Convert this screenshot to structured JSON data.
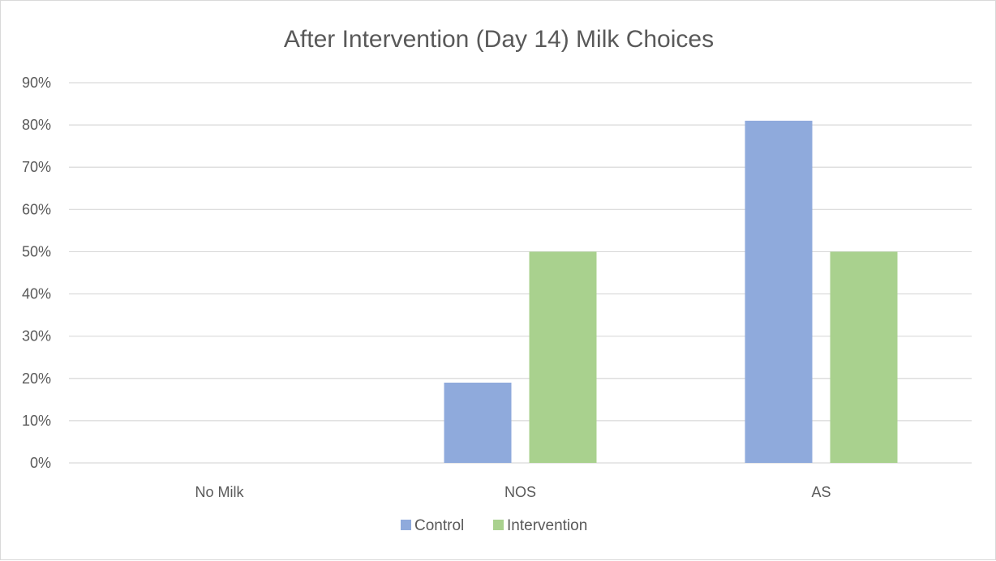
{
  "chart_data": {
    "type": "bar",
    "title": "After Intervention (Day 14) Milk Choices",
    "categories": [
      "No Milk",
      "NOS",
      "AS"
    ],
    "series": [
      {
        "name": "Control",
        "values": [
          0,
          0.19,
          0.81
        ],
        "color": "#8faadc"
      },
      {
        "name": "Intervention",
        "values": [
          0,
          0.5,
          0.5
        ],
        "color": "#a9d18e"
      }
    ],
    "ylim": [
      0,
      0.9
    ],
    "yticks": [
      0,
      0.1,
      0.2,
      0.3,
      0.4,
      0.5,
      0.6,
      0.7,
      0.8,
      0.9
    ],
    "ytick_labels": [
      "0%",
      "10%",
      "20%",
      "30%",
      "40%",
      "50%",
      "60%",
      "70%",
      "80%",
      "90%"
    ],
    "grid": true,
    "legend_position": "bottom"
  }
}
